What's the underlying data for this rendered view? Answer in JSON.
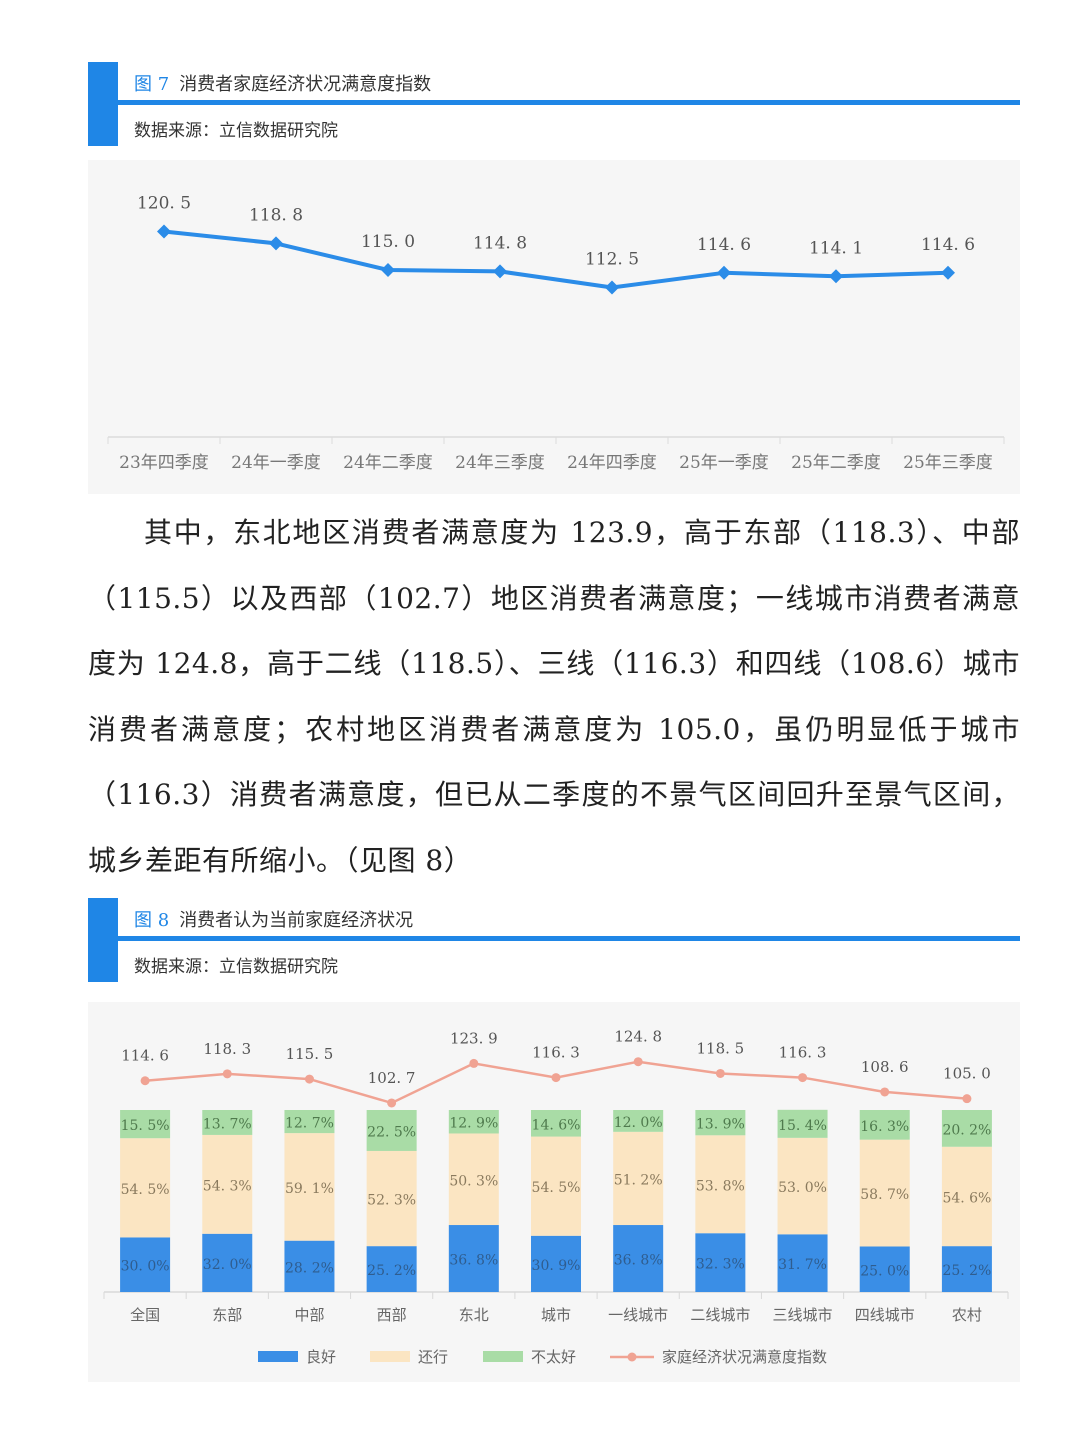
{
  "figure7": {
    "fig_no": "图 7",
    "title": "消费者家庭经济状况满意度指数",
    "source": "数据来源：立信数据研究院"
  },
  "figure8": {
    "fig_no": "图 8",
    "title": "消费者认为当前家庭经济状况",
    "source": "数据来源：立信数据研究院"
  },
  "paragraph": "其中，东北地区消费者满意度为 123.9，高于东部（118.3）、中部（115.5）以及西部（102.7）地区消费者满意度；一线城市消费者满意度为 124.8，高于二线（118.5）、三线（116.3）和四线（108.6）城市消费者满意度；农村地区消费者满意度为 105.0，虽仍明显低于城市（116.3）消费者满意度，但已从二季度的不景气区间回升至景气区间，城乡差距有所缩小。（见图 8）",
  "colors": {
    "accent": "#1f86e6",
    "line7": "#2b8ce8",
    "good": "#3a8ee6",
    "ok": "#fbe5c2",
    "bad": "#a9dca6",
    "index": "#f0a393"
  },
  "chart_data": [
    {
      "type": "line",
      "categories": [
        "23年四季度",
        "24年一季度",
        "24年二季度",
        "24年三季度",
        "24年四季度",
        "25年一季度",
        "25年二季度",
        "25年三季度"
      ],
      "values": [
        120.5,
        118.8,
        115.0,
        114.8,
        112.5,
        114.6,
        114.1,
        114.6
      ],
      "value_labels": [
        "120. 5",
        "118. 8",
        "115. 0",
        "114. 8",
        "112. 5",
        "114. 6",
        "114. 1",
        "114. 6"
      ],
      "ylim": [
        95,
        125
      ],
      "grid": false
    },
    {
      "type": "bar",
      "stacked": true,
      "categories": [
        "全国",
        "东部",
        "中部",
        "西部",
        "东北",
        "城市",
        "一线城市",
        "二线城市",
        "三线城市",
        "四线城市",
        "农村"
      ],
      "series": [
        {
          "name": "良好",
          "values": [
            30.0,
            32.0,
            28.2,
            25.2,
            36.8,
            30.9,
            36.8,
            32.3,
            31.7,
            25.0,
            25.2
          ],
          "labels": [
            "30. 0%",
            "32. 0%",
            "28. 2%",
            "25. 2%",
            "36. 8%",
            "30. 9%",
            "36. 8%",
            "32. 3%",
            "31. 7%",
            "25. 0%",
            "25. 2%"
          ]
        },
        {
          "name": "还行",
          "values": [
            54.5,
            54.3,
            59.1,
            52.3,
            50.3,
            54.5,
            51.2,
            53.8,
            53.0,
            58.7,
            54.6
          ],
          "labels": [
            "54. 5%",
            "54. 3%",
            "59. 1%",
            "52. 3%",
            "50. 3%",
            "54. 5%",
            "51. 2%",
            "53. 8%",
            "53. 0%",
            "58. 7%",
            "54. 6%"
          ]
        },
        {
          "name": "不太好",
          "values": [
            15.5,
            13.7,
            12.7,
            22.5,
            12.9,
            14.6,
            12.0,
            13.9,
            15.4,
            16.3,
            20.2
          ],
          "labels": [
            "15. 5%",
            "13. 7%",
            "12. 7%",
            "22. 5%",
            "12. 9%",
            "14. 6%",
            "12. 0%",
            "13. 9%",
            "15. 4%",
            "16. 3%",
            "20. 2%"
          ]
        }
      ],
      "line_series": {
        "name": "家庭经济状况满意度指数",
        "values": [
          114.6,
          118.3,
          115.5,
          102.7,
          123.9,
          116.3,
          124.8,
          118.5,
          116.3,
          108.6,
          105.0
        ],
        "labels": [
          "114. 6",
          "118. 3",
          "115. 5",
          "102. 7",
          "123. 9",
          "116. 3",
          "124. 8",
          "118. 5",
          "116. 3",
          "108. 6",
          "105. 0"
        ]
      },
      "legend": "bottom",
      "grid": false
    }
  ]
}
